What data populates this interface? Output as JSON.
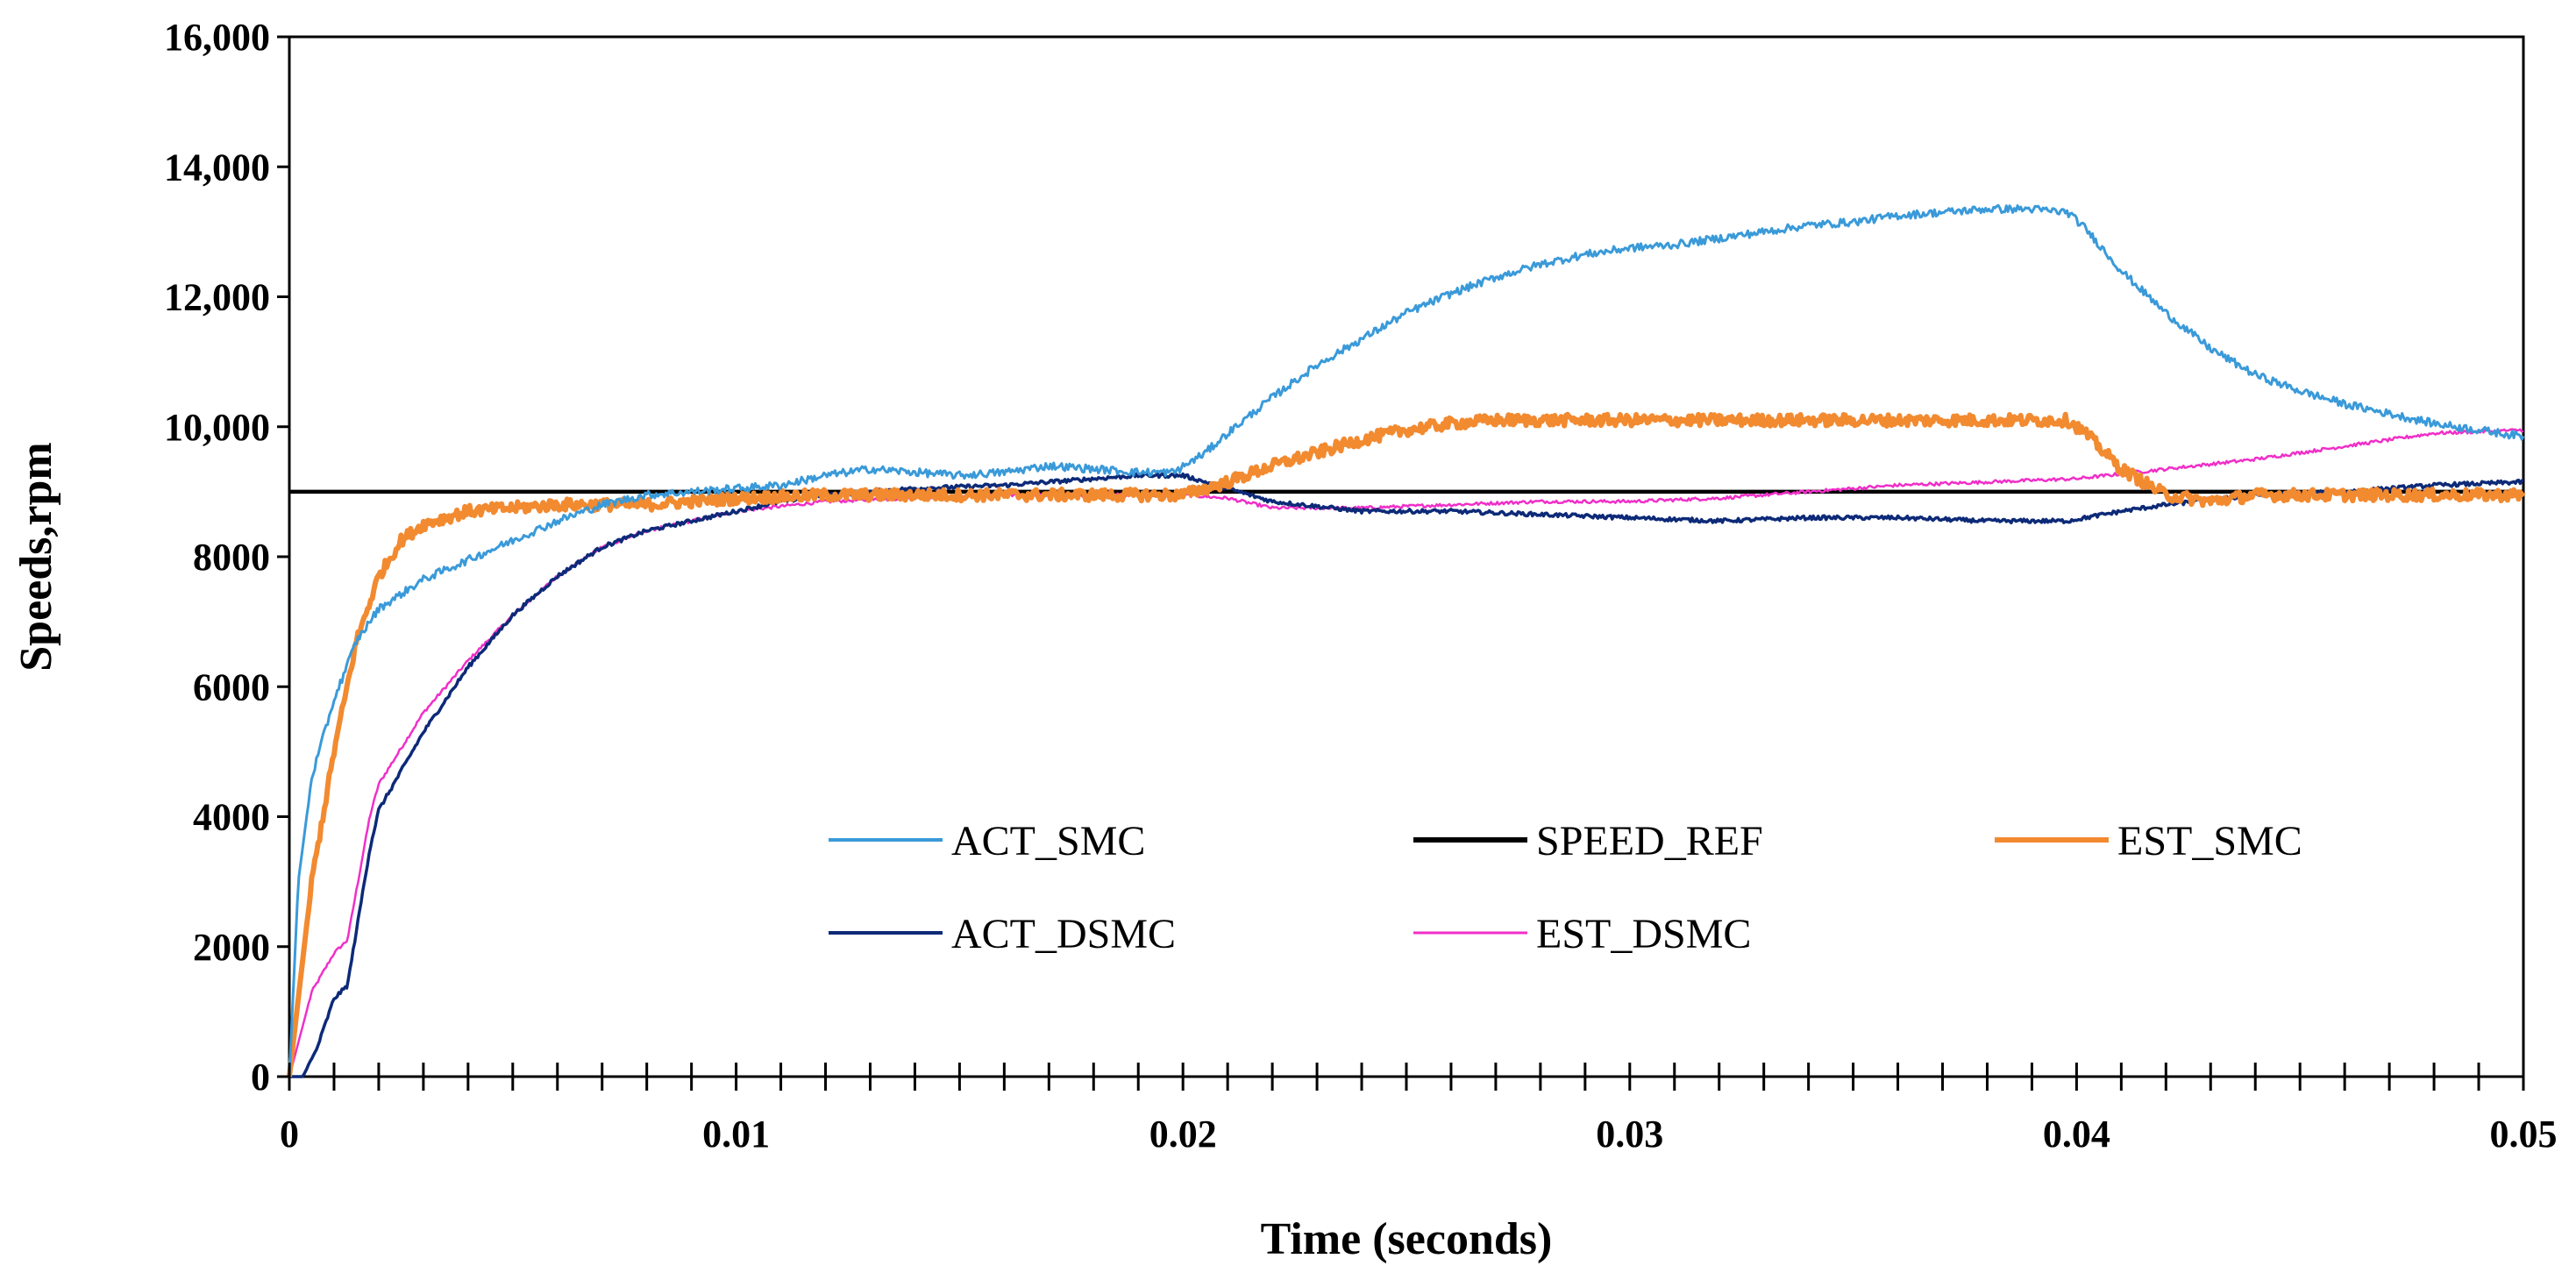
{
  "chart_data": {
    "type": "line",
    "title": "",
    "xlabel": "Time (seconds)",
    "ylabel": "Speeds,rpm",
    "xlim": [
      0,
      0.05
    ],
    "ylim": [
      0,
      16000
    ],
    "x_ticks": [
      {
        "value": 0,
        "label": "0"
      },
      {
        "value": 0.01,
        "label": "0.01"
      },
      {
        "value": 0.02,
        "label": "0.02"
      },
      {
        "value": 0.03,
        "label": "0.03"
      },
      {
        "value": 0.04,
        "label": "0.04"
      },
      {
        "value": 0.05,
        "label": "0.05"
      }
    ],
    "y_ticks": [
      {
        "value": 0,
        "label": "0"
      },
      {
        "value": 2000,
        "label": "2000"
      },
      {
        "value": 4000,
        "label": "4000"
      },
      {
        "value": 6000,
        "label": "6000"
      },
      {
        "value": 8000,
        "label": "8000"
      },
      {
        "value": 10000,
        "label": "10,000"
      },
      {
        "value": 12000,
        "label": "12,000"
      },
      {
        "value": 14000,
        "label": "14,000"
      },
      {
        "value": 16000,
        "label": "16,000"
      }
    ],
    "minor_x_step": 0.001,
    "grid": false,
    "legend_position": "center-bottom",
    "series": [
      {
        "name": "ACT_SMC",
        "color": "#3a9ad9",
        "noise": 60,
        "x": [
          0,
          0.0002,
          0.0005,
          0.001,
          0.0015,
          0.002,
          0.003,
          0.004,
          0.005,
          0.006,
          0.007,
          0.008,
          0.009,
          0.01,
          0.011,
          0.012,
          0.013,
          0.014,
          0.015,
          0.016,
          0.017,
          0.018,
          0.019,
          0.0198,
          0.0205,
          0.021,
          0.022,
          0.023,
          0.024,
          0.025,
          0.026,
          0.027,
          0.028,
          0.029,
          0.03,
          0.031,
          0.032,
          0.033,
          0.034,
          0.035,
          0.036,
          0.037,
          0.038,
          0.039,
          0.0398,
          0.0402,
          0.041,
          0.042,
          0.043,
          0.044,
          0.045,
          0.046,
          0.047,
          0.048,
          0.049,
          0.05
        ],
        "y": [
          0,
          3000,
          4600,
          5800,
          6700,
          7200,
          7650,
          7950,
          8250,
          8550,
          8800,
          8950,
          9000,
          9050,
          9100,
          9250,
          9350,
          9300,
          9250,
          9300,
          9400,
          9350,
          9300,
          9300,
          9600,
          9900,
          10450,
          10950,
          11350,
          11750,
          12050,
          12300,
          12500,
          12650,
          12750,
          12800,
          12900,
          13000,
          13100,
          13150,
          13250,
          13300,
          13350,
          13350,
          13300,
          13050,
          12400,
          11750,
          11200,
          10800,
          10550,
          10350,
          10200,
          10050,
          9950,
          9850
        ]
      },
      {
        "name": "SPEED_REF",
        "color": "#000000",
        "noise": 0,
        "x": [
          0,
          0.05
        ],
        "y": [
          9000,
          9000
        ]
      },
      {
        "name": "EST_SMC",
        "color": "#f28a30",
        "noise": 90,
        "x": [
          0,
          0.0005,
          0.001,
          0.0015,
          0.002,
          0.0025,
          0.003,
          0.004,
          0.005,
          0.006,
          0.008,
          0.01,
          0.012,
          0.014,
          0.016,
          0.018,
          0.02,
          0.021,
          0.022,
          0.023,
          0.024,
          0.025,
          0.026,
          0.027,
          0.028,
          0.03,
          0.032,
          0.034,
          0.036,
          0.038,
          0.0398,
          0.0402,
          0.041,
          0.042,
          0.043,
          0.044,
          0.046,
          0.048,
          0.05
        ],
        "y": [
          0,
          3000,
          5000,
          6700,
          7700,
          8250,
          8500,
          8700,
          8750,
          8800,
          8800,
          8900,
          8950,
          8950,
          8950,
          8950,
          8950,
          9150,
          9400,
          9600,
          9800,
          9950,
          10050,
          10100,
          10100,
          10100,
          10100,
          10100,
          10100,
          10100,
          10100,
          9900,
          9350,
          8950,
          8850,
          8950,
          8950,
          8950,
          8950
        ]
      },
      {
        "name": "ACT_DSMC",
        "color": "#0d2a78",
        "noise": 30,
        "x": [
          0,
          0.0003,
          0.0006,
          0.001,
          0.0013,
          0.0018,
          0.002,
          0.003,
          0.004,
          0.005,
          0.006,
          0.007,
          0.008,
          0.009,
          0.01,
          0.011,
          0.012,
          0.014,
          0.016,
          0.018,
          0.019,
          0.02,
          0.021,
          0.022,
          0.024,
          0.026,
          0.028,
          0.03,
          0.032,
          0.034,
          0.036,
          0.038,
          0.0398,
          0.041,
          0.042,
          0.044,
          0.046,
          0.048,
          0.05
        ],
        "y": [
          0,
          0,
          400,
          1200,
          1400,
          3500,
          4100,
          5300,
          6300,
          7100,
          7700,
          8150,
          8400,
          8550,
          8700,
          8850,
          8950,
          9050,
          9100,
          9200,
          9250,
          9250,
          9050,
          8850,
          8700,
          8700,
          8650,
          8600,
          8550,
          8600,
          8600,
          8550,
          8550,
          8700,
          8800,
          8950,
          9000,
          9100,
          9150
        ]
      },
      {
        "name": "EST_DSMC",
        "color": "#f02fc8",
        "noise": 25,
        "x": [
          0,
          0.0005,
          0.001,
          0.0013,
          0.0018,
          0.002,
          0.003,
          0.004,
          0.005,
          0.006,
          0.007,
          0.008,
          0.009,
          0.01,
          0.012,
          0.014,
          0.016,
          0.018,
          0.02,
          0.021,
          0.022,
          0.024,
          0.026,
          0.028,
          0.03,
          0.032,
          0.034,
          0.036,
          0.038,
          0.04,
          0.042,
          0.044,
          0.046,
          0.048,
          0.05
        ],
        "y": [
          0,
          1300,
          1900,
          2100,
          4000,
          4500,
          5600,
          6400,
          7100,
          7700,
          8150,
          8400,
          8550,
          8700,
          8850,
          8900,
          8950,
          8950,
          8950,
          8900,
          8750,
          8750,
          8800,
          8850,
          8850,
          8900,
          9000,
          9100,
          9150,
          9200,
          9350,
          9500,
          9700,
          9900,
          9950
        ]
      }
    ],
    "legend_order": [
      "ACT_SMC",
      "SPEED_REF",
      "EST_SMC",
      "ACT_DSMC",
      "EST_DSMC"
    ]
  }
}
